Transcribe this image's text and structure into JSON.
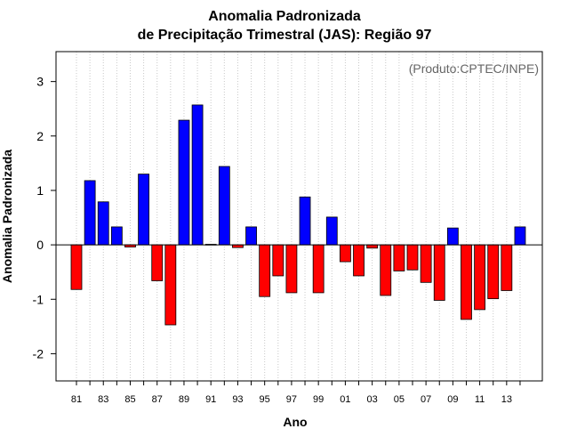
{
  "chart_data": {
    "type": "bar",
    "title": "Anomalia Padronizada",
    "subtitle": "de Precipitação Trimestral (JAS): Região 97",
    "xlabel": "Ano",
    "ylabel": "Anomalia Padronizada",
    "annotation": "(Produto:CPTEC/INPE)",
    "ylim": [
      -2.5,
      3.55
    ],
    "yticks": [
      -2,
      -1,
      0,
      1,
      2,
      3
    ],
    "grid": "vertical-dotted",
    "categories": [
      "81",
      "82",
      "83",
      "84",
      "85",
      "86",
      "87",
      "88",
      "89",
      "90",
      "91",
      "92",
      "93",
      "94",
      "95",
      "96",
      "97",
      "98",
      "99",
      "00",
      "01",
      "02",
      "03",
      "04",
      "05",
      "06",
      "07",
      "08",
      "09",
      "10",
      "11",
      "12",
      "13",
      "14"
    ],
    "xtick_labels": [
      "81",
      "83",
      "85",
      "87",
      "89",
      "91",
      "93",
      "95",
      "97",
      "99",
      "01",
      "03",
      "05",
      "07",
      "09",
      "11",
      "13"
    ],
    "values": [
      -0.82,
      1.18,
      0.79,
      0.33,
      -0.04,
      1.3,
      -0.66,
      -1.47,
      2.29,
      2.57,
      0.01,
      1.44,
      -0.05,
      0.33,
      -0.95,
      -0.57,
      -0.88,
      0.88,
      -0.88,
      0.51,
      -0.31,
      -0.57,
      -0.06,
      -0.93,
      -0.48,
      -0.46,
      -0.69,
      -1.02,
      0.31,
      -1.37,
      -1.19,
      -0.99,
      -0.84,
      0.33
    ],
    "colors": {
      "positive": "#0000ff",
      "negative": "#ff0000"
    }
  }
}
